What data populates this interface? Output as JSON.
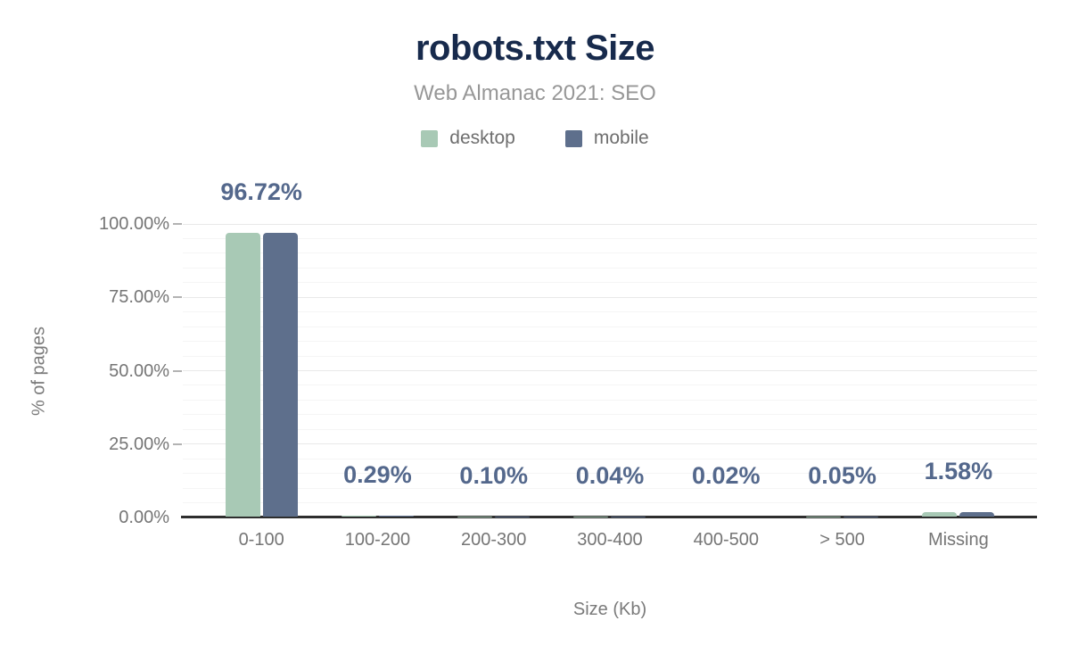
{
  "page": {
    "background": "#ffffff"
  },
  "chart_data": {
    "type": "bar",
    "title": "robots.txt Size",
    "subtitle": "Web Almanac 2021: SEO",
    "xlabel": "Size (Kb)",
    "ylabel": "% of pages",
    "categories": [
      "0-100",
      "100-200",
      "200-300",
      "300-400",
      "400-500",
      "> 500",
      "Missing"
    ],
    "series": [
      {
        "name": "desktop",
        "color": "#a8c9b5",
        "values": [
          96.72,
          0.29,
          0.1,
          0.04,
          0.02,
          0.05,
          1.58
        ]
      },
      {
        "name": "mobile",
        "color": "#5e6f8c",
        "values": [
          96.72,
          0.29,
          0.1,
          0.04,
          0.02,
          0.05,
          1.58
        ]
      }
    ],
    "value_labels": [
      "96.72%",
      "0.29%",
      "0.10%",
      "0.04%",
      "0.02%",
      "0.05%",
      "1.58%"
    ],
    "yticks": [
      {
        "value": 0,
        "label": "0.00%"
      },
      {
        "value": 25,
        "label": "25.00%"
      },
      {
        "value": 50,
        "label": "50.00%"
      },
      {
        "value": 75,
        "label": "75.00%"
      },
      {
        "value": 100,
        "label": "100.00%"
      }
    ],
    "ylim": [
      0,
      100
    ],
    "grid": {
      "minor_step": 5,
      "major_step": 25,
      "minor_color": "#f5f5f5",
      "major_color": "#e9e9e9"
    },
    "legend_position": "top",
    "colors": {
      "title": "#172a4c",
      "subtitle": "#979797",
      "value_label": "#54688c",
      "axis_text": "#757575",
      "axis_line": "#2e2e2e"
    }
  }
}
